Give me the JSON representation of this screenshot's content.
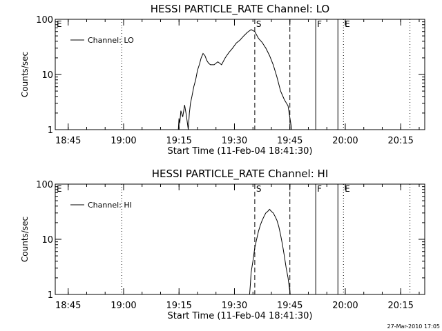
{
  "footer": {
    "timestamp": "27-Mar-2010 17:05"
  },
  "chart_data": [
    {
      "type": "line",
      "title": "HESSI PARTICLE_RATE Channel: LO",
      "xlabel": "Start Time (11-Feb-04 18:41:30)",
      "ylabel": "Counts/sec",
      "yscale": "log",
      "ylim": [
        1,
        100
      ],
      "xlim_minutes_after_start": [
        0,
        100
      ],
      "xticks": [
        "18:45",
        "19:00",
        "19:15",
        "19:30",
        "19:45",
        "20:00",
        "20:15"
      ],
      "yticks": [
        "1",
        "10",
        "100"
      ],
      "legend": {
        "position": "top-left",
        "entries": [
          "Channel: LO"
        ]
      },
      "markers": [
        {
          "label": "E",
          "time": "18:41:30",
          "style": "none"
        },
        {
          "label": "",
          "time": "18:59:30",
          "style": "dotted"
        },
        {
          "label": "S",
          "time": "19:35:30",
          "style": "dashed"
        },
        {
          "label": "",
          "time": "19:45:00",
          "style": "dashed"
        },
        {
          "label": "F",
          "time": "19:52:00",
          "style": "solid"
        },
        {
          "label": "",
          "time": "19:58:00",
          "style": "solid"
        },
        {
          "label": "E",
          "time": "19:59:30",
          "style": "dotted"
        },
        {
          "label": "",
          "time": "20:17:30",
          "style": "dotted"
        }
      ],
      "series": [
        {
          "name": "Channel: LO",
          "x": [
            33.3,
            33.5,
            33.7,
            34,
            34.5,
            35,
            35.5,
            36,
            36.3,
            36.6,
            37,
            37.5,
            38,
            38.5,
            39,
            39.5,
            40,
            40.5,
            41,
            41.5,
            42,
            43,
            44,
            45,
            46,
            47,
            48,
            49,
            50,
            51,
            52,
            53,
            54,
            55,
            56,
            57,
            58,
            59,
            60,
            61,
            62,
            63,
            64
          ],
          "y": [
            1,
            1.6,
            1.3,
            2.2,
            1.7,
            2.8,
            1.8,
            1,
            2,
            3,
            4,
            6,
            8,
            12,
            15,
            20,
            24,
            22,
            18,
            16,
            15,
            15,
            17,
            15,
            20,
            25,
            30,
            37,
            42,
            50,
            58,
            65,
            60,
            45,
            38,
            30,
            22,
            15,
            9,
            5,
            3.5,
            2.7,
            1
          ]
        }
      ]
    },
    {
      "type": "line",
      "title": "HESSI PARTICLE_RATE Channel: HI",
      "xlabel": "Start Time (11-Feb-04 18:41:30)",
      "ylabel": "Counts/sec",
      "yscale": "log",
      "ylim": [
        1,
        100
      ],
      "xlim_minutes_after_start": [
        0,
        100
      ],
      "xticks": [
        "18:45",
        "19:00",
        "19:15",
        "19:30",
        "19:45",
        "20:00",
        "20:15"
      ],
      "yticks": [
        "1",
        "10",
        "100"
      ],
      "legend": {
        "position": "top-left",
        "entries": [
          "Channel: HI"
        ]
      },
      "markers": [
        {
          "label": "E",
          "time": "18:41:30",
          "style": "none"
        },
        {
          "label": "",
          "time": "18:59:30",
          "style": "dotted"
        },
        {
          "label": "S",
          "time": "19:35:30",
          "style": "dashed"
        },
        {
          "label": "",
          "time": "19:45:00",
          "style": "dashed"
        },
        {
          "label": "F",
          "time": "19:52:00",
          "style": "solid"
        },
        {
          "label": "",
          "time": "19:58:00",
          "style": "solid"
        },
        {
          "label": "E",
          "time": "19:59:30",
          "style": "dotted"
        },
        {
          "label": "",
          "time": "20:17:30",
          "style": "dotted"
        }
      ],
      "series": [
        {
          "name": "Channel: HI",
          "x": [
            52.6,
            52.8,
            53,
            53.5,
            54,
            54.5,
            55,
            55.5,
            56,
            56.5,
            57,
            57.5,
            58,
            58.5,
            59,
            59.5,
            60,
            60.5,
            61,
            61.5,
            62,
            62.5,
            63,
            63.3,
            63.6
          ],
          "y": [
            1,
            1.5,
            2.5,
            4,
            7,
            10,
            14,
            18,
            22,
            26,
            30,
            32,
            35,
            32,
            30,
            26,
            22,
            17,
            12,
            8,
            5,
            3,
            2,
            1.4,
            1
          ]
        }
      ]
    }
  ]
}
